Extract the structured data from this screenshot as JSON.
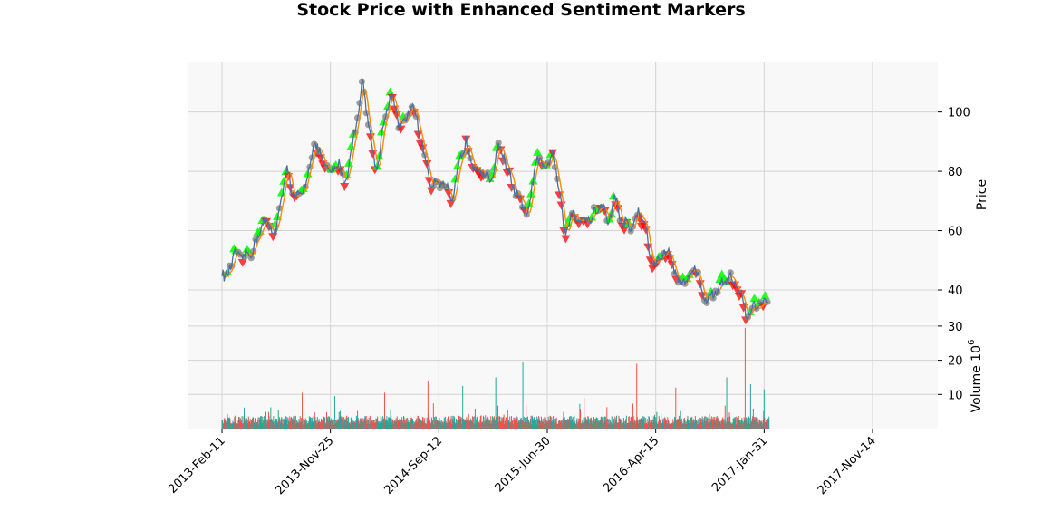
{
  "chart_data": {
    "type": "line",
    "title": "Stock Price with Enhanced Sentiment Markers",
    "price_panel": {
      "ylabel": "Price",
      "ylim": [
        29,
        117
      ],
      "yticks": [
        40,
        60,
        80,
        100
      ],
      "ytick_labels": [
        "40",
        "60",
        "80",
        "100"
      ],
      "series": [
        {
          "name": "Close",
          "color": "#4a6fa5"
        },
        {
          "name": "Moving Average",
          "color": "#ff8c00"
        }
      ],
      "markers": [
        {
          "name": "Positive sentiment",
          "shape": "triangle-up",
          "color": "#00ff00"
        },
        {
          "name": "Negative sentiment",
          "shape": "triangle-down",
          "color": "#ff0000"
        },
        {
          "name": "Neutral sentiment",
          "shape": "circle",
          "color": "#808080"
        }
      ]
    },
    "volume_panel": {
      "ylabel": "Volume",
      "ylabel_unit": "10",
      "ylabel_exp": "6",
      "ylim": [
        0,
        30.5
      ],
      "yticks": [
        10,
        20,
        30
      ],
      "ytick_labels": [
        "10",
        "20",
        "30"
      ],
      "up_color": "#26a69a",
      "down_color": "#ef5350",
      "spikes": [
        {
          "date_index": 148,
          "value": 10.5,
          "up": false
        },
        {
          "date_index": 208,
          "value": 9.5,
          "up": true
        },
        {
          "date_index": 300,
          "value": 10.5,
          "up": false
        },
        {
          "date_index": 380,
          "value": 14.0,
          "up": false
        },
        {
          "date_index": 444,
          "value": 12.5,
          "up": true
        },
        {
          "date_index": 505,
          "value": 15.0,
          "up": true
        },
        {
          "date_index": 555,
          "value": 19.5,
          "up": true
        },
        {
          "date_index": 668,
          "value": 9.0,
          "up": false
        },
        {
          "date_index": 765,
          "value": 19.0,
          "up": false
        },
        {
          "date_index": 837,
          "value": 12.0,
          "up": false
        },
        {
          "date_index": 931,
          "value": 15.0,
          "up": true
        },
        {
          "date_index": 965,
          "value": 29.5,
          "up": false
        },
        {
          "date_index": 975,
          "value": 13.0,
          "up": true
        },
        {
          "date_index": 1000,
          "value": 11.5,
          "up": true
        }
      ]
    },
    "x": {
      "n_points": 1010,
      "tick_indices": [
        0,
        200,
        400,
        600,
        800,
        1000,
        1200
      ],
      "tick_labels": [
        "2013-Feb-11",
        "2013-Nov-25",
        "2014-Sep-12",
        "2015-Jun-30",
        "2016-Apr-15",
        "2017-Jan-31",
        "2017-Nov-14"
      ]
    },
    "price_path": [
      [
        0,
        46
      ],
      [
        5,
        43
      ],
      [
        15,
        48
      ],
      [
        25,
        52
      ],
      [
        40,
        51
      ],
      [
        55,
        53
      ],
      [
        65,
        57
      ],
      [
        75,
        63
      ],
      [
        90,
        61
      ],
      [
        100,
        60
      ],
      [
        110,
        71
      ],
      [
        120,
        82
      ],
      [
        130,
        72
      ],
      [
        145,
        71
      ],
      [
        160,
        80
      ],
      [
        170,
        90
      ],
      [
        185,
        84
      ],
      [
        200,
        79
      ],
      [
        215,
        83
      ],
      [
        225,
        76
      ],
      [
        235,
        82
      ],
      [
        245,
        94
      ],
      [
        260,
        110
      ],
      [
        275,
        90
      ],
      [
        285,
        80
      ],
      [
        300,
        98
      ],
      [
        312,
        106
      ],
      [
        325,
        97
      ],
      [
        335,
        95
      ],
      [
        350,
        103
      ],
      [
        360,
        97
      ],
      [
        375,
        84
      ],
      [
        385,
        76
      ],
      [
        400,
        77
      ],
      [
        415,
        74
      ],
      [
        425,
        69
      ],
      [
        440,
        85
      ],
      [
        450,
        90
      ],
      [
        465,
        82
      ],
      [
        480,
        80
      ],
      [
        495,
        76
      ],
      [
        510,
        89
      ],
      [
        520,
        85
      ],
      [
        535,
        76
      ],
      [
        550,
        70
      ],
      [
        565,
        65
      ],
      [
        580,
        85
      ],
      [
        595,
        80
      ],
      [
        610,
        86
      ],
      [
        620,
        76
      ],
      [
        633,
        58
      ],
      [
        645,
        66
      ],
      [
        660,
        64
      ],
      [
        680,
        64
      ],
      [
        700,
        69
      ],
      [
        712,
        63
      ],
      [
        725,
        71
      ],
      [
        738,
        63
      ],
      [
        755,
        61
      ],
      [
        768,
        66
      ],
      [
        780,
        63
      ],
      [
        788,
        53
      ],
      [
        800,
        48
      ],
      [
        815,
        53
      ],
      [
        830,
        51
      ],
      [
        840,
        43
      ],
      [
        858,
        43
      ],
      [
        872,
        49
      ],
      [
        885,
        39
      ],
      [
        895,
        37
      ],
      [
        910,
        39
      ],
      [
        920,
        42
      ],
      [
        935,
        45
      ],
      [
        950,
        41
      ],
      [
        960,
        37
      ],
      [
        968,
        31
      ],
      [
        985,
        35
      ],
      [
        1000,
        35
      ],
      [
        1005,
        36
      ]
    ]
  }
}
